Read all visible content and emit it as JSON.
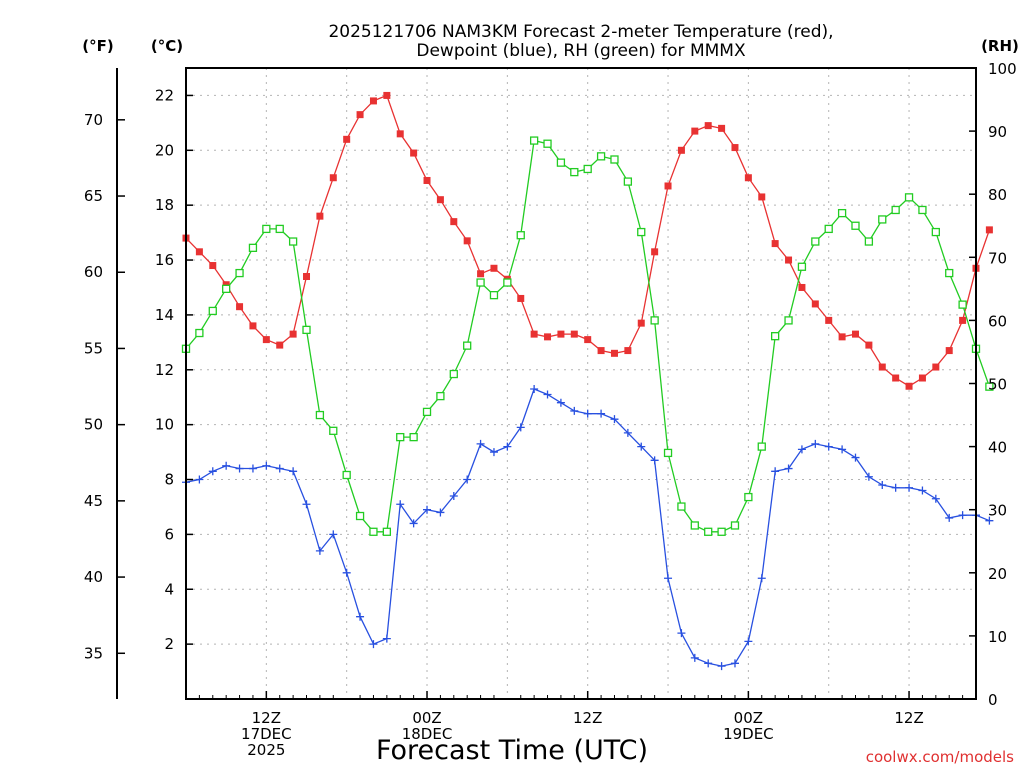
{
  "chart_data": {
    "type": "line",
    "title": "2025121706 NAM3KM Forecast 2-meter Temperature (red),",
    "subtitle": "Dewpoint (blue), RH (green) for MMMX",
    "xlabel": "Forecast Time (UTC)",
    "credit": "coolwx.com/models",
    "unit_labels": {
      "fahrenheit": "(°F)",
      "celsius": "(°C)",
      "rh": "(RH)"
    },
    "x_range_hours": [
      0,
      59
    ],
    "x_ticks": [
      {
        "hour": 6,
        "lines": [
          "12Z",
          "17DEC",
          "2025"
        ]
      },
      {
        "hour": 18,
        "lines": [
          "00Z",
          "18DEC"
        ]
      },
      {
        "hour": 30,
        "lines": [
          "12Z"
        ]
      },
      {
        "hour": 42,
        "lines": [
          "00Z",
          "19DEC"
        ]
      },
      {
        "hour": 54,
        "lines": [
          "12Z"
        ]
      }
    ],
    "y_celsius": {
      "range": [
        0,
        23
      ],
      "ticks": [
        2,
        4,
        6,
        8,
        10,
        12,
        14,
        16,
        18,
        20,
        22
      ]
    },
    "y_fahrenheit": {
      "range": [
        32,
        73.4
      ],
      "ticks": [
        35,
        40,
        45,
        50,
        55,
        60,
        65,
        70
      ]
    },
    "y_rh": {
      "range": [
        0,
        100
      ],
      "ticks": [
        0,
        10,
        20,
        30,
        40,
        50,
        60,
        70,
        80,
        90,
        100
      ]
    },
    "grid": true,
    "series": [
      {
        "name": "Temperature",
        "axis": "celsius",
        "color": "#e83232",
        "marker": "filled-square",
        "values": [
          16.8,
          16.3,
          15.8,
          15.1,
          14.3,
          13.6,
          13.1,
          12.9,
          13.3,
          15.4,
          17.6,
          19.0,
          20.4,
          21.3,
          21.8,
          22.0,
          20.6,
          19.9,
          18.9,
          18.2,
          17.4,
          16.7,
          15.5,
          15.7,
          15.3,
          14.6,
          13.3,
          13.2,
          13.3,
          13.3,
          13.1,
          12.7,
          12.6,
          12.7,
          13.7,
          16.3,
          18.7,
          20.0,
          20.7,
          20.9,
          20.8,
          20.1,
          19.0,
          18.3,
          16.6,
          16.0,
          15.0,
          14.4,
          13.8,
          13.2,
          13.3,
          12.9,
          12.1,
          11.7,
          11.4,
          11.7,
          12.1,
          12.7,
          13.8,
          15.7,
          17.1
        ]
      },
      {
        "name": "Dewpoint",
        "axis": "celsius",
        "color": "#2850e0",
        "marker": "plus",
        "values": [
          7.9,
          8.0,
          8.3,
          8.5,
          8.4,
          8.4,
          8.5,
          8.4,
          8.3,
          7.1,
          5.4,
          6.0,
          4.6,
          3.0,
          2.0,
          2.2,
          7.1,
          6.4,
          6.9,
          6.8,
          7.4,
          8.0,
          9.3,
          9.0,
          9.2,
          9.9,
          11.3,
          11.1,
          10.8,
          10.5,
          10.4,
          10.4,
          10.2,
          9.7,
          9.2,
          8.7,
          4.4,
          2.4,
          1.5,
          1.3,
          1.2,
          1.3,
          2.1,
          4.4,
          8.3,
          8.4,
          9.1,
          9.3,
          9.2,
          9.1,
          8.8,
          8.1,
          7.8,
          7.7,
          7.7,
          7.6,
          7.3,
          6.6,
          6.7,
          6.7,
          6.5
        ]
      },
      {
        "name": "RH",
        "axis": "rh",
        "color": "#22cc22",
        "marker": "open-square",
        "values": [
          55.5,
          58,
          61.5,
          65,
          67.5,
          71.5,
          74.5,
          74.5,
          72.5,
          58.5,
          45,
          42.5,
          35.5,
          29,
          26.5,
          26.5,
          41.5,
          41.5,
          45.5,
          48,
          51.5,
          56,
          66,
          64,
          66,
          73.5,
          88.5,
          88,
          85,
          83.5,
          84,
          86,
          85.5,
          82,
          74,
          60,
          39,
          30.5,
          27.5,
          26.5,
          26.5,
          27.5,
          32,
          40,
          57.5,
          60,
          68.5,
          72.5,
          74.5,
          77,
          75,
          72.5,
          76,
          77.5,
          79.5,
          77.5,
          74,
          67.5,
          62.5,
          55.5,
          49.5
        ]
      }
    ]
  }
}
